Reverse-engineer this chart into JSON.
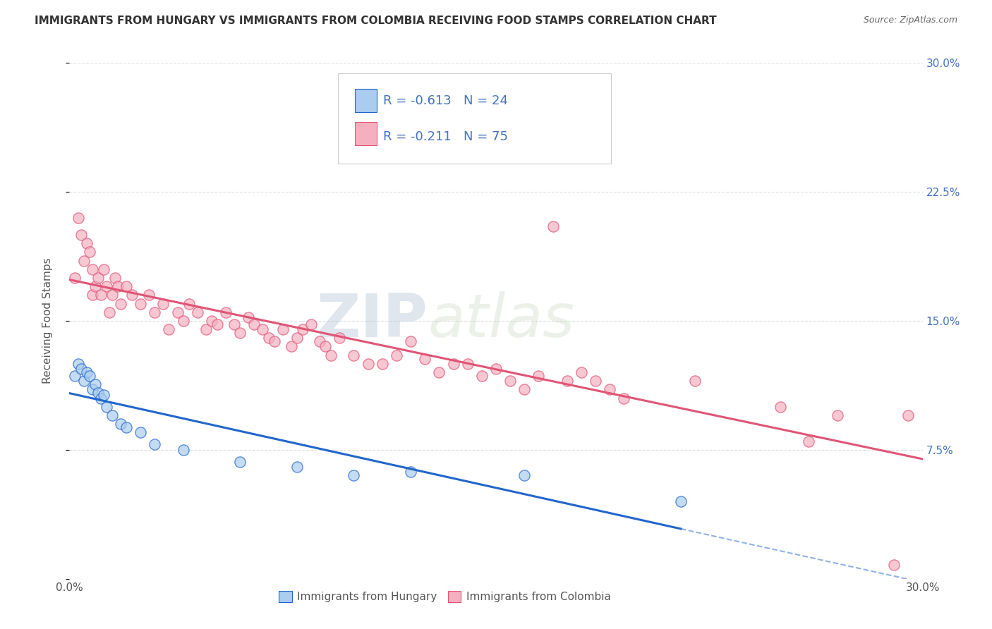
{
  "title": "IMMIGRANTS FROM HUNGARY VS IMMIGRANTS FROM COLOMBIA RECEIVING FOOD STAMPS CORRELATION CHART",
  "source": "Source: ZipAtlas.com",
  "ylabel": "Receiving Food Stamps",
  "xlim": [
    0.0,
    0.3
  ],
  "ylim": [
    0.0,
    0.3
  ],
  "hungary_r": -0.613,
  "hungary_n": 24,
  "colombia_r": -0.211,
  "colombia_n": 75,
  "hungary_color": "#aaccee",
  "colombia_color": "#f5b0c0",
  "hungary_line_color": "#2266cc",
  "colombia_line_color": "#e05575",
  "hungary_scatter": [
    [
      0.002,
      0.118
    ],
    [
      0.003,
      0.125
    ],
    [
      0.004,
      0.122
    ],
    [
      0.005,
      0.115
    ],
    [
      0.006,
      0.12
    ],
    [
      0.007,
      0.118
    ],
    [
      0.008,
      0.11
    ],
    [
      0.009,
      0.113
    ],
    [
      0.01,
      0.108
    ],
    [
      0.011,
      0.105
    ],
    [
      0.012,
      0.107
    ],
    [
      0.013,
      0.1
    ],
    [
      0.015,
      0.095
    ],
    [
      0.018,
      0.09
    ],
    [
      0.02,
      0.088
    ],
    [
      0.025,
      0.085
    ],
    [
      0.03,
      0.078
    ],
    [
      0.04,
      0.075
    ],
    [
      0.06,
      0.068
    ],
    [
      0.08,
      0.065
    ],
    [
      0.1,
      0.06
    ],
    [
      0.12,
      0.062
    ],
    [
      0.16,
      0.06
    ],
    [
      0.215,
      0.045
    ]
  ],
  "colombia_scatter": [
    [
      0.002,
      0.175
    ],
    [
      0.003,
      0.21
    ],
    [
      0.004,
      0.2
    ],
    [
      0.005,
      0.185
    ],
    [
      0.006,
      0.195
    ],
    [
      0.007,
      0.19
    ],
    [
      0.008,
      0.18
    ],
    [
      0.008,
      0.165
    ],
    [
      0.009,
      0.17
    ],
    [
      0.01,
      0.175
    ],
    [
      0.011,
      0.165
    ],
    [
      0.012,
      0.18
    ],
    [
      0.013,
      0.17
    ],
    [
      0.014,
      0.155
    ],
    [
      0.015,
      0.165
    ],
    [
      0.016,
      0.175
    ],
    [
      0.017,
      0.17
    ],
    [
      0.018,
      0.16
    ],
    [
      0.02,
      0.17
    ],
    [
      0.022,
      0.165
    ],
    [
      0.025,
      0.16
    ],
    [
      0.028,
      0.165
    ],
    [
      0.03,
      0.155
    ],
    [
      0.033,
      0.16
    ],
    [
      0.035,
      0.145
    ],
    [
      0.038,
      0.155
    ],
    [
      0.04,
      0.15
    ],
    [
      0.042,
      0.16
    ],
    [
      0.045,
      0.155
    ],
    [
      0.048,
      0.145
    ],
    [
      0.05,
      0.15
    ],
    [
      0.052,
      0.148
    ],
    [
      0.055,
      0.155
    ],
    [
      0.058,
      0.148
    ],
    [
      0.06,
      0.143
    ],
    [
      0.063,
      0.152
    ],
    [
      0.065,
      0.148
    ],
    [
      0.068,
      0.145
    ],
    [
      0.07,
      0.14
    ],
    [
      0.072,
      0.138
    ],
    [
      0.075,
      0.145
    ],
    [
      0.078,
      0.135
    ],
    [
      0.08,
      0.14
    ],
    [
      0.082,
      0.145
    ],
    [
      0.085,
      0.148
    ],
    [
      0.088,
      0.138
    ],
    [
      0.09,
      0.135
    ],
    [
      0.092,
      0.13
    ],
    [
      0.095,
      0.14
    ],
    [
      0.1,
      0.13
    ],
    [
      0.105,
      0.125
    ],
    [
      0.11,
      0.125
    ],
    [
      0.115,
      0.13
    ],
    [
      0.12,
      0.138
    ],
    [
      0.125,
      0.128
    ],
    [
      0.13,
      0.12
    ],
    [
      0.135,
      0.125
    ],
    [
      0.14,
      0.125
    ],
    [
      0.145,
      0.118
    ],
    [
      0.15,
      0.122
    ],
    [
      0.155,
      0.115
    ],
    [
      0.16,
      0.11
    ],
    [
      0.165,
      0.118
    ],
    [
      0.17,
      0.205
    ],
    [
      0.175,
      0.115
    ],
    [
      0.18,
      0.12
    ],
    [
      0.185,
      0.115
    ],
    [
      0.19,
      0.11
    ],
    [
      0.195,
      0.105
    ],
    [
      0.22,
      0.115
    ],
    [
      0.25,
      0.1
    ],
    [
      0.26,
      0.08
    ],
    [
      0.27,
      0.095
    ],
    [
      0.29,
      0.008
    ],
    [
      0.295,
      0.095
    ]
  ],
  "watermark_zip": "ZIP",
  "watermark_atlas": "atlas",
  "background_color": "#ffffff",
  "grid_color": "#dddddd",
  "title_color": "#333333",
  "axis_label_color": "#555555",
  "right_tick_color": "#4472c4",
  "legend_label_hungary": "Immigrants from Hungary",
  "legend_label_colombia": "Immigrants from Colombia"
}
